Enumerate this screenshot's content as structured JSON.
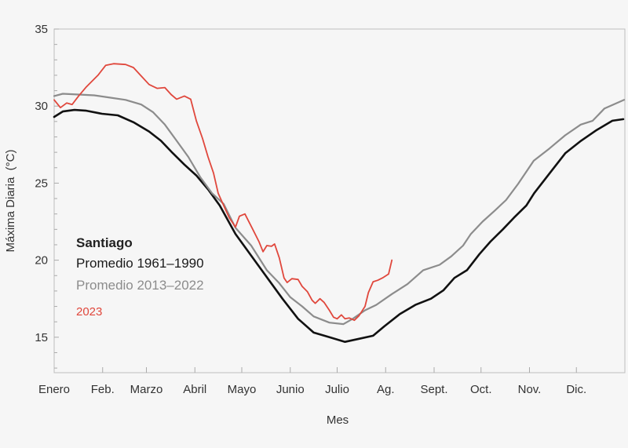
{
  "chart_data": {
    "type": "line",
    "title": "",
    "xlabel": "Mes",
    "ylabel": "Máxima Diaria  (°C)",
    "xlim": [
      0,
      365
    ],
    "ylim": [
      12.7,
      35
    ],
    "grid": false,
    "y_ticks": [
      15,
      20,
      25,
      30,
      35
    ],
    "y_tick_labels": [
      "15",
      "20",
      "25",
      "30",
      "35"
    ],
    "x_tick_days": [
      0,
      31,
      59,
      90,
      120,
      151,
      181,
      212,
      243,
      273,
      304,
      334
    ],
    "x_tick_labels": [
      "Enero",
      "Feb.",
      "Marzo",
      "Abril",
      "Mayo",
      "Junio",
      "Julio",
      "Ag.",
      "Sept.",
      "Oct.",
      "Nov.",
      "Dic."
    ],
    "legend": {
      "placement": "center-left",
      "title": "Santiago",
      "entries": [
        "Promedio 1961–1990",
        "Promedio 2013–2022",
        "2023"
      ]
    },
    "series": [
      {
        "name": "Promedio 1961–1990",
        "color": "#111111",
        "x": [
          0,
          5.5,
          13,
          20.6,
          30.6,
          40.7,
          50.7,
          60.7,
          68.3,
          75.8,
          83.3,
          90.9,
          98.4,
          105.9,
          116,
          131,
          146,
          156,
          166,
          176,
          186,
          195,
          204,
          211,
          221,
          231,
          241,
          249,
          256,
          264,
          272,
          279,
          287,
          294,
          302,
          307,
          317,
          327,
          337,
          347,
          357,
          364
        ],
        "y": [
          29.3,
          29.65,
          29.75,
          29.7,
          29.5,
          29.4,
          28.95,
          28.35,
          27.75,
          26.95,
          26.2,
          25.5,
          24.6,
          23.55,
          21.7,
          19.6,
          17.5,
          16.2,
          15.3,
          15.0,
          14.7,
          14.9,
          15.1,
          15.7,
          16.5,
          17.1,
          17.5,
          18.05,
          18.85,
          19.35,
          20.4,
          21.2,
          22.0,
          22.75,
          23.55,
          24.35,
          25.65,
          26.95,
          27.75,
          28.45,
          29.05,
          29.15
        ]
      },
      {
        "name": "Promedio 2013–2022",
        "color": "#8c8c8c",
        "x": [
          0,
          5.5,
          15.6,
          25.6,
          35.6,
          45.7,
          55.7,
          63.3,
          70.8,
          78.3,
          85.8,
          93.4,
          100.9,
          108.4,
          116,
          126,
          136,
          143.6,
          151,
          158.6,
          166,
          176,
          185,
          191,
          198.8,
          206,
          216,
          226,
          236,
          246.5,
          254,
          261.5,
          266.5,
          274,
          281.6,
          289,
          296.7,
          306.7,
          316.8,
          326.8,
          336.8,
          344.4,
          352,
          364.5
        ],
        "y": [
          30.65,
          30.8,
          30.75,
          30.7,
          30.55,
          30.4,
          30.1,
          29.6,
          28.8,
          27.75,
          26.7,
          25.4,
          24.35,
          23.65,
          22.1,
          20.95,
          19.35,
          18.55,
          17.6,
          17.0,
          16.35,
          15.95,
          15.85,
          16.2,
          16.75,
          17.1,
          17.8,
          18.45,
          19.35,
          19.7,
          20.25,
          20.95,
          21.7,
          22.5,
          23.2,
          23.9,
          24.95,
          26.45,
          27.25,
          28.1,
          28.8,
          29.05,
          29.85,
          30.4
        ]
      },
      {
        "name": "2023",
        "color": "#e0473c",
        "x": [
          0,
          4,
          8,
          11.5,
          15.6,
          20.6,
          28,
          33,
          38,
          45.7,
          50.7,
          55.7,
          60.7,
          65.8,
          70.8,
          74.8,
          78.3,
          83.3,
          87.3,
          90.9,
          94.9,
          98.4,
          101.9,
          104.9,
          108.4,
          112,
          116,
          118.5,
          122,
          127,
          131,
          133.6,
          136,
          139,
          141,
          144,
          147,
          149,
          152,
          156,
          158.6,
          162,
          165,
          167,
          170,
          172.7,
          176,
          178.7,
          181,
          183.7,
          186,
          188.8,
          192,
          195,
          198.8,
          201,
          204,
          207,
          210,
          213.9,
          216
        ],
        "y": [
          30.4,
          29.9,
          30.2,
          30.1,
          30.65,
          31.25,
          32.0,
          32.65,
          32.75,
          32.7,
          32.5,
          31.95,
          31.4,
          31.15,
          31.2,
          30.75,
          30.45,
          30.65,
          30.45,
          29.05,
          27.9,
          26.7,
          25.65,
          24.35,
          23.55,
          22.75,
          22.15,
          22.85,
          23.0,
          22.0,
          21.2,
          20.55,
          20.95,
          20.9,
          21.05,
          20.15,
          18.85,
          18.55,
          18.8,
          18.75,
          18.3,
          17.95,
          17.4,
          17.2,
          17.5,
          17.25,
          16.75,
          16.3,
          16.2,
          16.45,
          16.2,
          16.25,
          16.1,
          16.4,
          17.0,
          17.9,
          18.6,
          18.7,
          18.85,
          19.1,
          20.0
        ]
      }
    ]
  }
}
